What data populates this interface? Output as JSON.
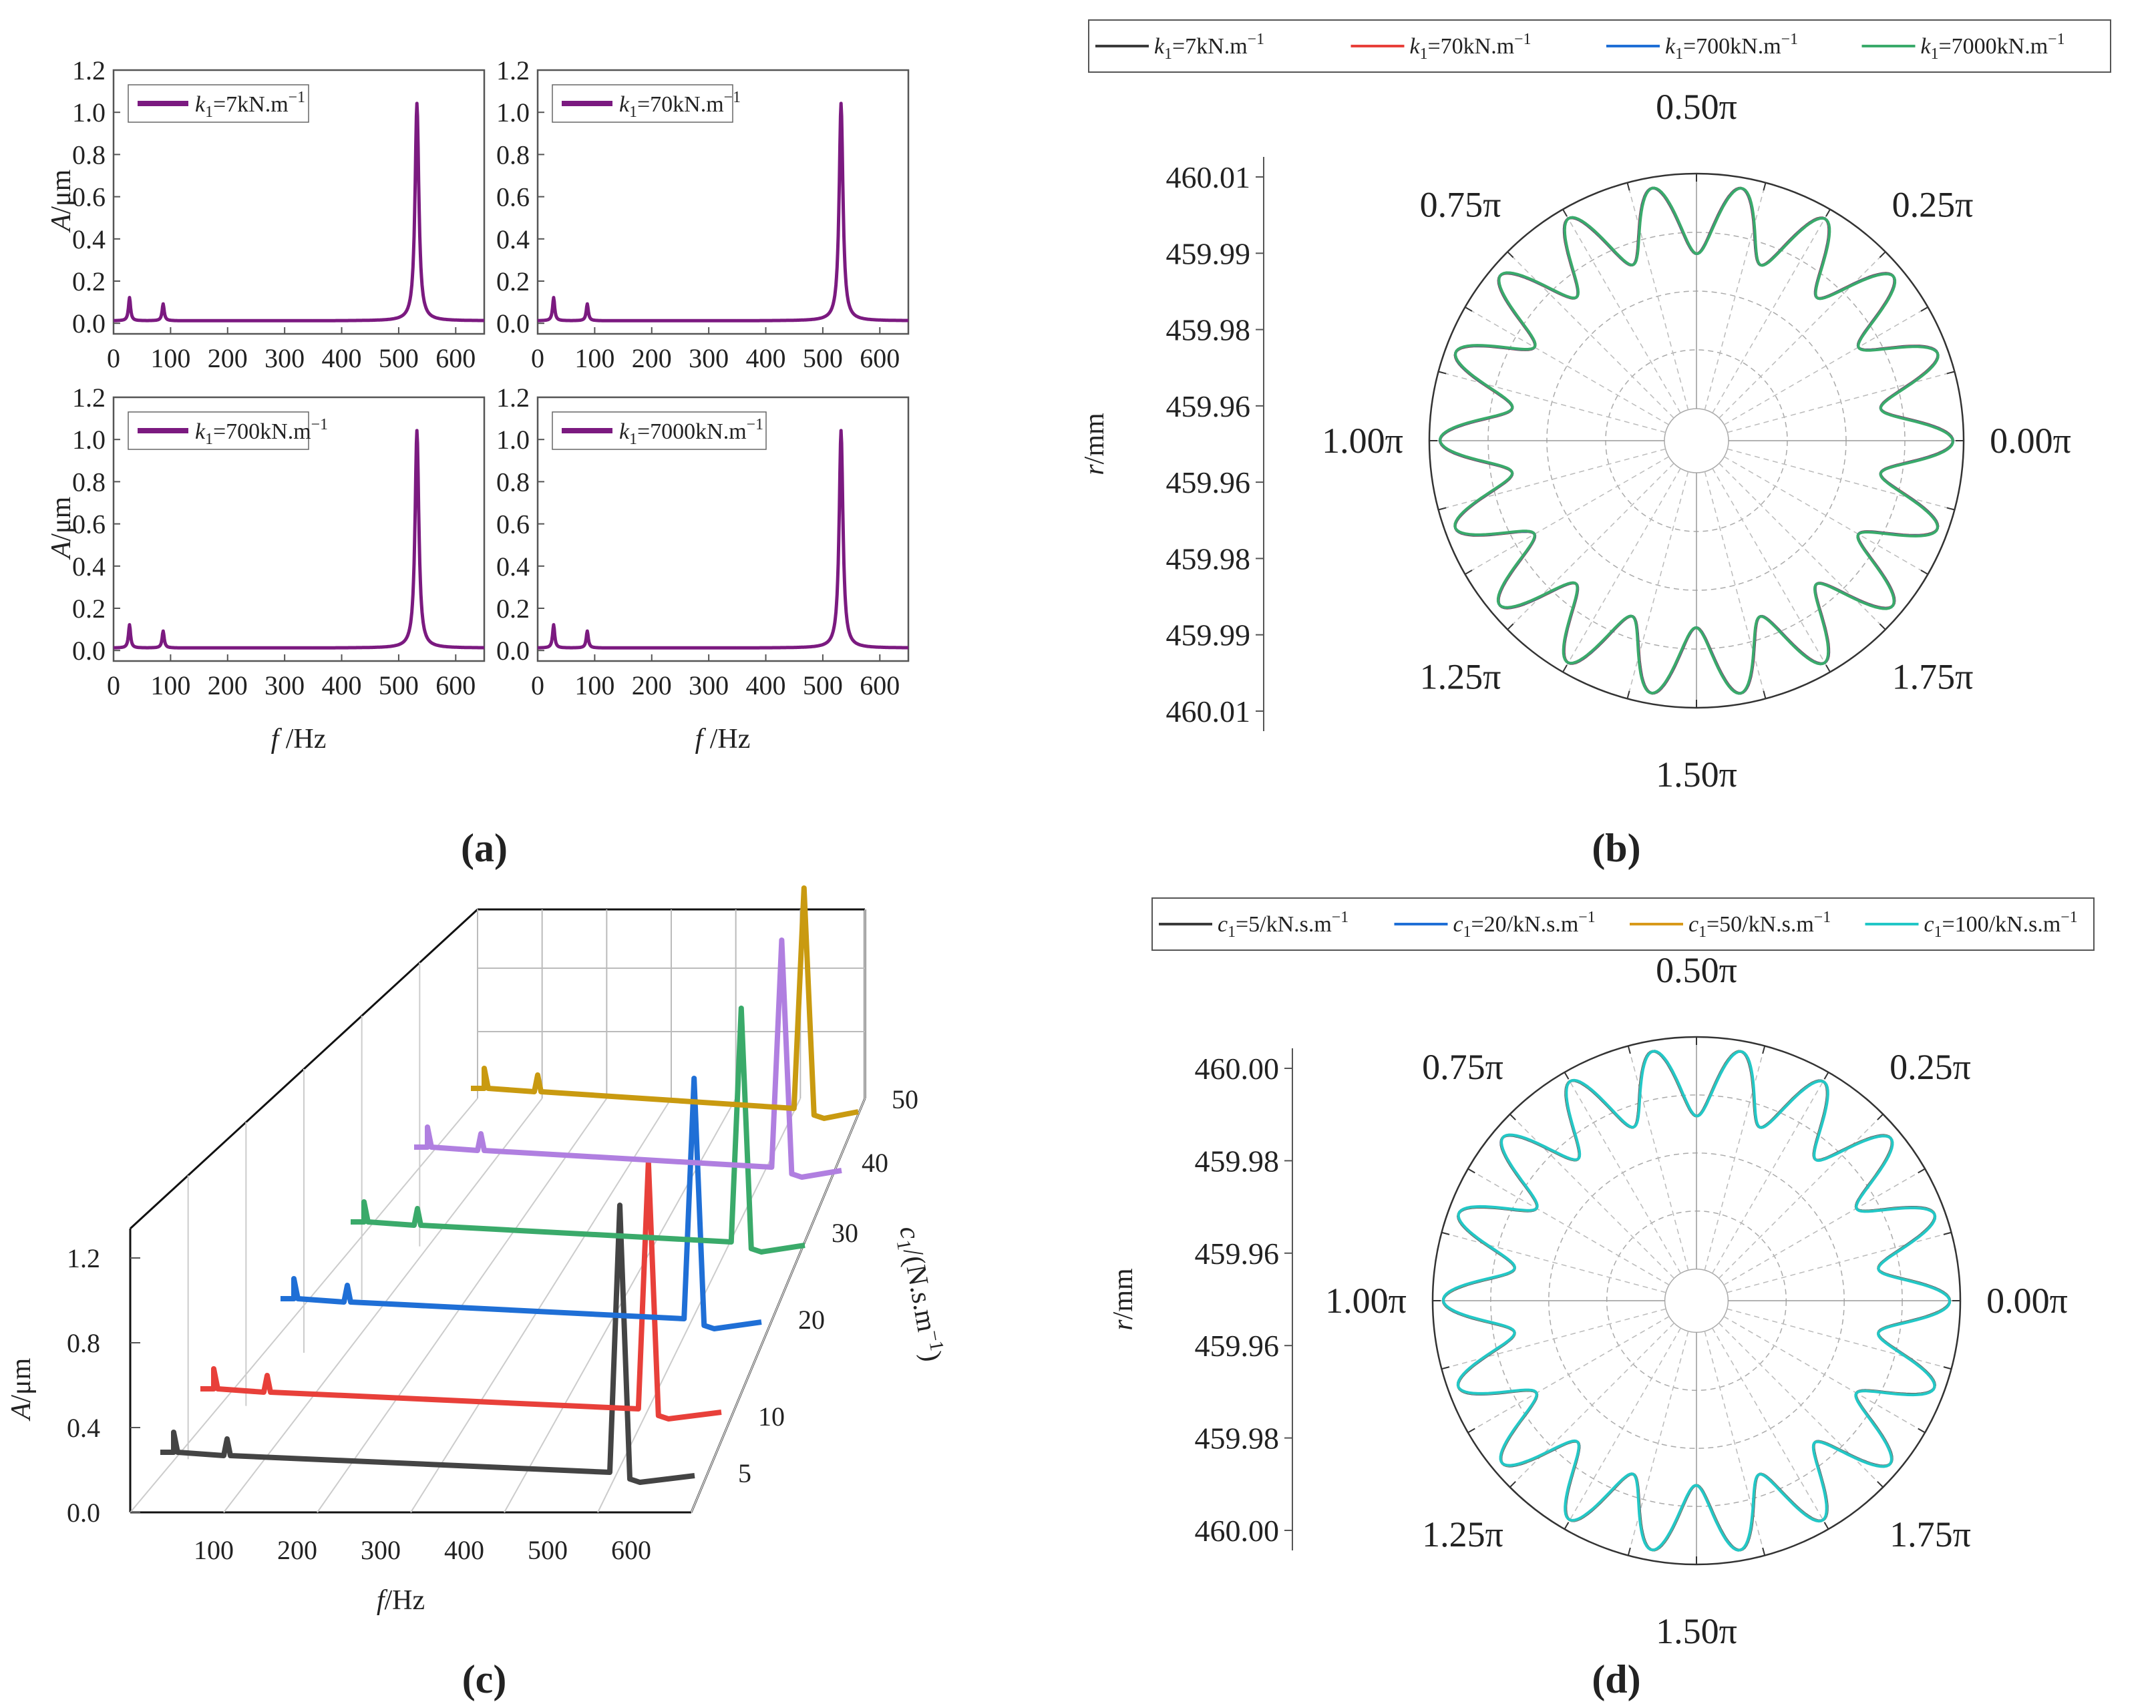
{
  "panel_labels": [
    "(a)",
    "(b)",
    "(c)",
    "(d)"
  ],
  "chart_data": [
    {
      "type": "line",
      "panel": "a",
      "subplots": [
        {
          "legend": "k1=7kN.m-1",
          "legend_html": [
            "k",
            "1",
            "=7kN.m",
            "−1"
          ]
        },
        {
          "legend": "k1=70kN.m-1",
          "legend_html": [
            "k",
            "1",
            "=70kN.m",
            "−1"
          ]
        },
        {
          "legend": "k1=700kN.m-1",
          "legend_html": [
            "k",
            "1",
            "=700kN.m",
            "−1"
          ]
        },
        {
          "legend": "k1=7000kN.m-1",
          "legend_html": [
            "k",
            "1",
            "=7000kN.m",
            "−1"
          ]
        }
      ],
      "xlabel": "f /Hz",
      "ylabel": "A/μm",
      "xlim": [
        0,
        650
      ],
      "ylim": [
        -0.05,
        1.2
      ],
      "xticks": [
        0,
        100,
        200,
        300,
        400,
        500,
        600
      ],
      "yticks": [
        0.0,
        0.2,
        0.4,
        0.6,
        0.8,
        1.0,
        1.2
      ],
      "series_color": "#7b1a80",
      "peaks": [
        {
          "x": 28,
          "y": 0.11
        },
        {
          "x": 87,
          "y": 0.08
        },
        {
          "x": 532,
          "y": 1.03
        }
      ]
    },
    {
      "type": "polar",
      "panel": "b",
      "series": [
        {
          "name": "k1=7kN.m-1",
          "name_parts": [
            "k",
            "1",
            "=7kN.m",
            "−1"
          ],
          "color": "#3b3b3b"
        },
        {
          "name": "k1=70kN.m-1",
          "name_parts": [
            "k",
            "1",
            "=70kN.m",
            "−1"
          ],
          "color": "#e8403a"
        },
        {
          "name": "k1=700kN.m-1",
          "name_parts": [
            "k",
            "1",
            "=700kN.m",
            "−1"
          ],
          "color": "#1f6fd6"
        },
        {
          "name": "k1=7000kN.m-1",
          "name_parts": [
            "k",
            "1",
            "=7000kN.m",
            "−1"
          ],
          "color": "#3aaa6a"
        }
      ],
      "lobes": 18,
      "angle_labels": [
        "0.00π",
        "0.25π",
        "0.50π",
        "0.75π",
        "1.00π",
        "1.25π",
        "1.50π",
        "1.75π"
      ],
      "r_ticks": [
        "460.01",
        "459.99",
        "459.98",
        "459.96",
        "459.96",
        "459.98",
        "459.99",
        "460.01"
      ],
      "rlabel": "r/mm",
      "legend_position": "top"
    },
    {
      "type": "line3d",
      "panel": "c",
      "xlabel": "f/Hz",
      "ylabel": "A/μm",
      "zlabel": "c1/(N.s.m-1)",
      "zlabel_parts": [
        "c",
        "1",
        "/(N.s.m",
        "−1",
        ")"
      ],
      "xticks": [
        100,
        200,
        300,
        400,
        500,
        600
      ],
      "yticks": [
        "0.0",
        "0.4",
        "0.8",
        "1.2"
      ],
      "zticks": [
        5,
        10,
        20,
        30,
        40,
        50
      ],
      "series": [
        {
          "c": 5,
          "color": "#444444",
          "peak": 1.25,
          "peak_x": 548
        },
        {
          "c": 10,
          "color": "#e8403a",
          "peak": 0.95,
          "peak_x": 548
        },
        {
          "c": 20,
          "color": "#1f6fd6",
          "peak": 0.92,
          "peak_x": 548
        },
        {
          "c": 30,
          "color": "#3aaa6a",
          "peak": 0.88,
          "peak_x": 548
        },
        {
          "c": 40,
          "color": "#b07fe0",
          "peak": 0.86,
          "peak_x": 548
        },
        {
          "c": 50,
          "color": "#c99a10",
          "peak": 0.7,
          "peak_x": 548
        }
      ]
    },
    {
      "type": "polar",
      "panel": "d",
      "series": [
        {
          "name": "c1=5/kN.s.m-1",
          "name_parts": [
            "c",
            "1",
            "=5/kN.s.m",
            "−1"
          ],
          "color": "#3b3b3b"
        },
        {
          "name": "c1=20/kN.s.m-1",
          "name_parts": [
            "c",
            "1",
            "=20/kN.s.m",
            "−1"
          ],
          "color": "#1f6fd6"
        },
        {
          "name": "c1=50/kN.s.m-1",
          "name_parts": [
            "c",
            "1",
            "=50/kN.s.m",
            "−1"
          ],
          "color": "#d89a1a"
        },
        {
          "name": "c1=100/kN.s.m-1",
          "name_parts": [
            "c",
            "1",
            "=100/kN.s.m",
            "−1"
          ],
          "color": "#22c7c7"
        }
      ],
      "lobes": 18,
      "angle_labels": [
        "0.00π",
        "0.25π",
        "0.50π",
        "0.75π",
        "1.00π",
        "1.25π",
        "1.50π",
        "1.75π"
      ],
      "r_ticks": [
        "460.00",
        "459.98",
        "459.96",
        "459.96",
        "459.98",
        "460.00"
      ],
      "rlabel": "r/mm",
      "legend_position": "top"
    }
  ]
}
